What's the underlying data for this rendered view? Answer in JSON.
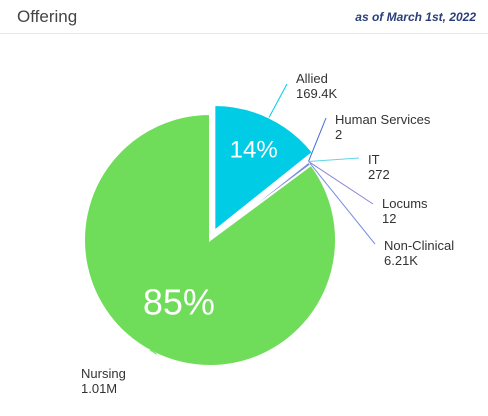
{
  "header": {
    "title": "Offering",
    "as_of": "as of March 1st, 2022"
  },
  "chart_data": {
    "type": "pie",
    "categories": [
      "Nursing",
      "Allied",
      "Human Services",
      "IT",
      "Locums",
      "Non-Clinical"
    ],
    "values": [
      1010000,
      169400,
      2,
      272,
      12,
      6210
    ],
    "value_labels": [
      "1.01M",
      "169.4K",
      "2",
      "272",
      "12",
      "6.21K"
    ],
    "percent_labels": [
      "85%",
      "14%",
      "",
      "",
      "",
      ""
    ],
    "colors": [
      "#6fdc5a",
      "#00cce6",
      "#3d6fd6",
      "#5fd6e8",
      "#8b84d6",
      "#7b8fe0"
    ],
    "exploded": "Allied"
  }
}
